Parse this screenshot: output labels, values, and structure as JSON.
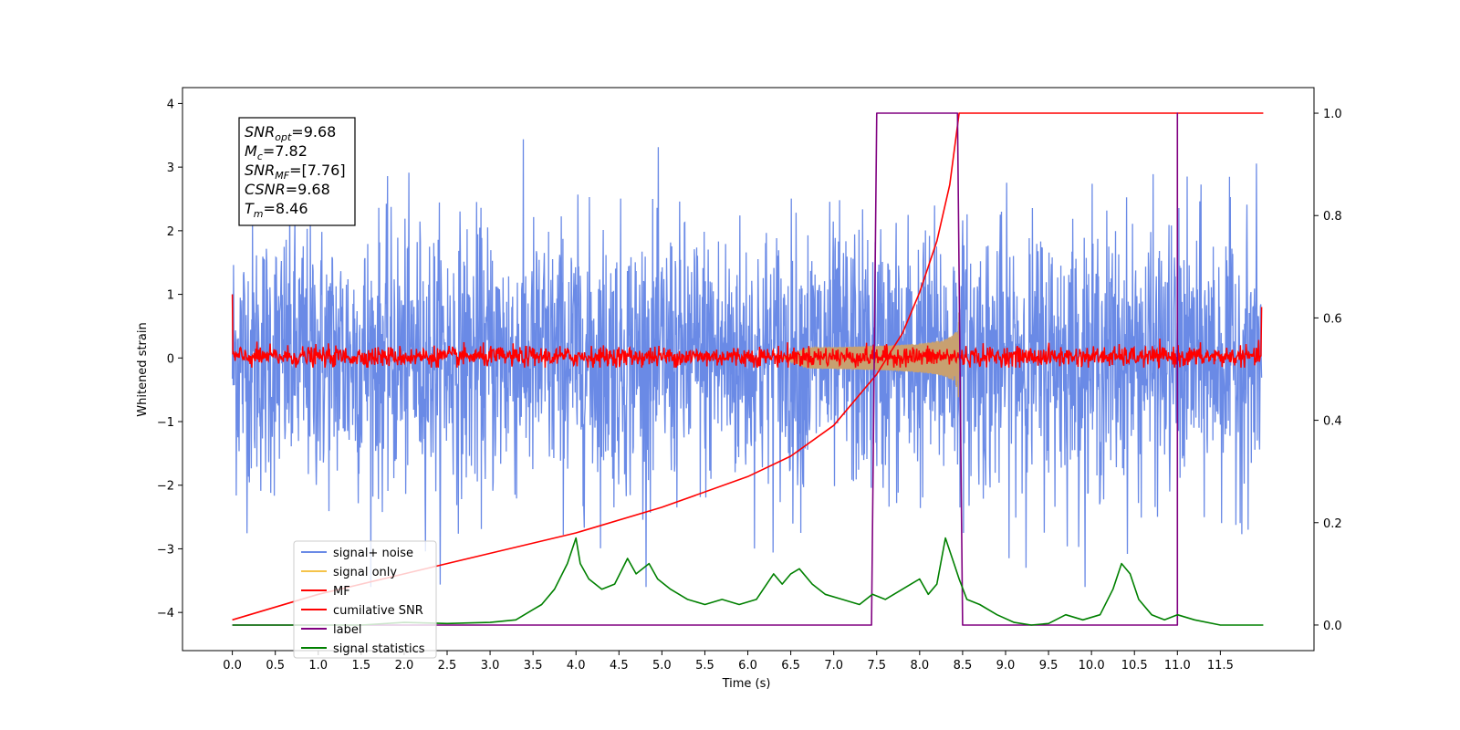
{
  "chart_data": {
    "type": "line",
    "xlabel": "Time (s)",
    "ylabel": "Whitened strain",
    "xlim": [
      -0.58,
      12.59
    ],
    "ylim": [
      -4.6,
      4.25
    ],
    "y2lim": [
      -0.05,
      1.05
    ],
    "x_ticks": [
      "0.0",
      "0.5",
      "1.0",
      "1.5",
      "2.0",
      "2.5",
      "3.0",
      "3.5",
      "4.0",
      "4.5",
      "5.0",
      "5.5",
      "6.0",
      "6.5",
      "7.0",
      "7.5",
      "8.0",
      "8.5",
      "9.0",
      "9.5",
      "10.0",
      "10.5",
      "11.0",
      "11.5"
    ],
    "y_ticks": [
      "4",
      "3",
      "2",
      "1",
      "0",
      "−1",
      "−2",
      "−3",
      "−4"
    ],
    "y2_ticks": [
      "1.0",
      "0.8",
      "0.6",
      "0.4",
      "0.2",
      "0.0"
    ],
    "grid": false,
    "legend_position": "lower-left",
    "annotation": [
      {
        "var": "SNR",
        "sub": "opt",
        "value": "=9.68"
      },
      {
        "var": "M",
        "sub": "c",
        "value": "=7.82"
      },
      {
        "var": "SNR",
        "sub": "MF",
        "value": "=[7.76]"
      },
      {
        "var": "CSNR",
        "sub": "",
        "value": "=9.68"
      },
      {
        "var": "T",
        "sub": "m",
        "value": "=8.46"
      }
    ],
    "series": [
      {
        "name": "signal+ noise",
        "color": "#6a8ae6",
        "axis": "left",
        "kind": "noise",
        "envelope_min": -3.6,
        "envelope_max": 3.6,
        "t_start": 0.0,
        "t_end": 11.98
      },
      {
        "name": "signal only",
        "color": "#f5c34a",
        "axis": "left",
        "kind": "chirp",
        "t_start": 6.4,
        "t_end": 8.46,
        "max_amplitude": 0.75
      },
      {
        "name": "MF",
        "color": "#ff0000",
        "axis": "left",
        "kind": "mf",
        "envelope_min": -0.15,
        "envelope_max": 0.35
      },
      {
        "name": "cumilative SNR",
        "color": "#ff0000",
        "axis": "right",
        "x": [
          0.0,
          1.0,
          2.0,
          3.0,
          4.0,
          5.0,
          6.0,
          6.5,
          7.0,
          7.5,
          7.8,
          8.0,
          8.2,
          8.35,
          8.46,
          12.0
        ],
        "y": [
          0.01,
          0.06,
          0.1,
          0.14,
          0.18,
          0.23,
          0.29,
          0.33,
          0.39,
          0.49,
          0.57,
          0.65,
          0.75,
          0.86,
          1.0,
          1.0
        ]
      },
      {
        "name": "label",
        "color": "#800080",
        "axis": "right",
        "x": [
          0.0,
          7.44,
          7.5,
          8.44,
          8.5,
          11.0,
          11.0,
          11.0
        ],
        "y": [
          0.0,
          0.0,
          1.0,
          1.0,
          0.0,
          0.0,
          1.0,
          0.0
        ]
      },
      {
        "name": "signal statistics",
        "color": "#008000",
        "axis": "right",
        "x": [
          0.0,
          0.5,
          1.0,
          1.5,
          2.0,
          2.5,
          3.0,
          3.3,
          3.5,
          3.6,
          3.75,
          3.9,
          4.0,
          4.05,
          4.15,
          4.3,
          4.45,
          4.6,
          4.7,
          4.85,
          4.95,
          5.1,
          5.3,
          5.5,
          5.7,
          5.9,
          6.1,
          6.3,
          6.4,
          6.5,
          6.6,
          6.75,
          6.9,
          7.1,
          7.3,
          7.45,
          7.6,
          7.8,
          7.9,
          8.0,
          8.1,
          8.2,
          8.3,
          8.4,
          8.46,
          8.55,
          8.7,
          8.9,
          9.1,
          9.3,
          9.5,
          9.7,
          9.9,
          10.1,
          10.25,
          10.35,
          10.45,
          10.55,
          10.7,
          10.85,
          11.0,
          11.2,
          11.5,
          12.0
        ],
        "y": [
          0.0,
          0.0,
          0.0,
          0.0,
          0.005,
          0.003,
          0.005,
          0.01,
          0.03,
          0.04,
          0.07,
          0.12,
          0.17,
          0.12,
          0.09,
          0.07,
          0.08,
          0.13,
          0.1,
          0.12,
          0.09,
          0.07,
          0.05,
          0.04,
          0.05,
          0.04,
          0.05,
          0.1,
          0.08,
          0.1,
          0.11,
          0.08,
          0.06,
          0.05,
          0.04,
          0.06,
          0.05,
          0.07,
          0.08,
          0.09,
          0.06,
          0.08,
          0.17,
          0.12,
          0.09,
          0.05,
          0.04,
          0.02,
          0.005,
          0.0,
          0.003,
          0.02,
          0.01,
          0.02,
          0.07,
          0.12,
          0.1,
          0.05,
          0.02,
          0.01,
          0.02,
          0.01,
          0.0,
          0.0
        ]
      }
    ]
  }
}
